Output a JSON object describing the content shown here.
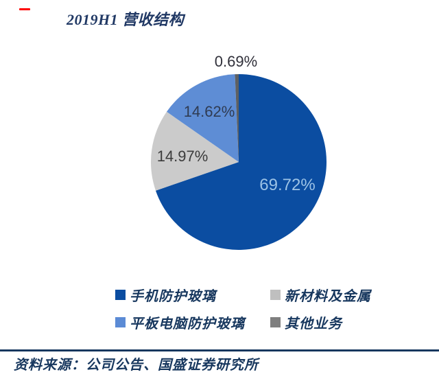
{
  "header": {
    "dash_color": "#fe0000",
    "title": "2019H1 营收结构",
    "title_color": "#203864"
  },
  "chart_data": {
    "type": "pie",
    "title": "2019H1 营收结构",
    "start_angle_deg": 0,
    "direction": "clockwise",
    "unit": "%",
    "slices": [
      {
        "name": "手机防护玻璃",
        "value_pct": 69.72,
        "color": "#0b4da1",
        "data_label": "69.72%",
        "data_label_color": "#9dc3e6"
      },
      {
        "name": "新材料及金属",
        "value_pct": 14.97,
        "color": "#cbcbcb",
        "data_label": "14.97%",
        "data_label_color": "#3b3b3b"
      },
      {
        "name": "平板电脑防护玻璃",
        "value_pct": 14.62,
        "color": "#5e8dd5",
        "data_label": "14.62%",
        "data_label_color": "#2f3b52"
      },
      {
        "name": "其他业务",
        "value_pct": 0.69,
        "color": "#5e6062",
        "data_label": "0.69%",
        "data_label_color": "#30303a"
      }
    ],
    "legend_position": "bottom"
  },
  "legend": {
    "text_color": "#17375e",
    "items": [
      {
        "label": "手机防护玻璃",
        "color": "#0b4da1"
      },
      {
        "label": "新材料及金属",
        "color": "#bfbfbf"
      },
      {
        "label": "平板电脑防护玻璃",
        "color": "#5b8bd5"
      },
      {
        "label": "其他业务",
        "color": "#7f7f7f"
      }
    ]
  },
  "footer": {
    "rule_color": "#17375e",
    "text_color": "#17375e",
    "source_label": "资料来源：公司公告、国盛证券研究所"
  }
}
